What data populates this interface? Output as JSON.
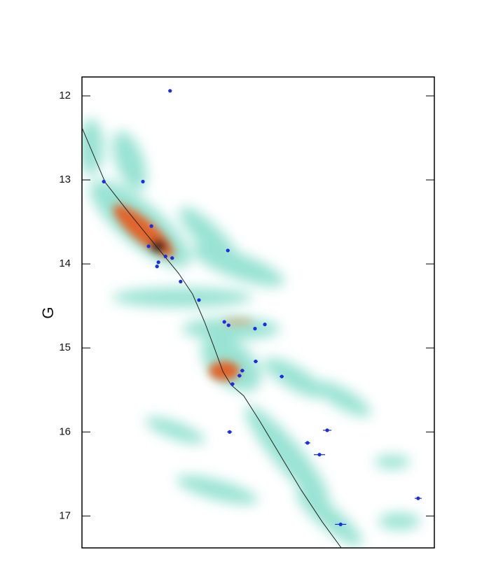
{
  "chart_data": {
    "type": "cmd",
    "ylabel": "G",
    "ylim": [
      11.775,
      17.38
    ],
    "yticks": [
      12,
      13,
      14,
      15,
      16,
      17
    ],
    "y_inverted": true,
    "xlim": [
      0,
      1
    ],
    "isochrone": {
      "color": "#222222",
      "x": [
        0,
        0.066,
        0.135,
        0.209,
        0.274,
        0.314,
        0.348,
        0.374,
        0.4,
        0.423,
        0.459,
        0.503,
        0.563,
        0.622,
        0.682,
        0.736
      ],
      "y": [
        12.38,
        13.03,
        13.4,
        13.78,
        14.11,
        14.36,
        14.69,
        14.98,
        15.28,
        15.44,
        15.57,
        15.86,
        16.28,
        16.69,
        17.07,
        17.38
      ]
    },
    "stars": {
      "color": "#1a2ee0",
      "x": [
        0.25,
        0.062,
        0.173,
        0.197,
        0.189,
        0.414,
        0.237,
        0.256,
        0.217,
        0.213,
        0.28,
        0.332,
        0.404,
        0.416,
        0.519,
        0.491,
        0.493,
        0.455,
        0.447,
        0.567,
        0.427,
        0.419,
        0.696,
        0.64,
        0.674,
        0.954,
        0.734
      ],
      "y": [
        11.94,
        13.02,
        13.02,
        13.55,
        13.79,
        13.84,
        13.91,
        13.93,
        13.98,
        14.03,
        14.21,
        14.43,
        14.69,
        14.73,
        14.72,
        14.77,
        15.16,
        15.27,
        15.33,
        15.34,
        15.43,
        16.0,
        15.98,
        16.13,
        16.27,
        16.79,
        17.1
      ],
      "xerr": [
        0.005,
        0.005,
        0.005,
        0.005,
        0.005,
        0.005,
        0.005,
        0.005,
        0.005,
        0.005,
        0.005,
        0.005,
        0.005,
        0.005,
        0.005,
        0.005,
        0.006,
        0.006,
        0.006,
        0.006,
        0.006,
        0.007,
        0.012,
        0.008,
        0.016,
        0.01,
        0.016
      ]
    }
  }
}
